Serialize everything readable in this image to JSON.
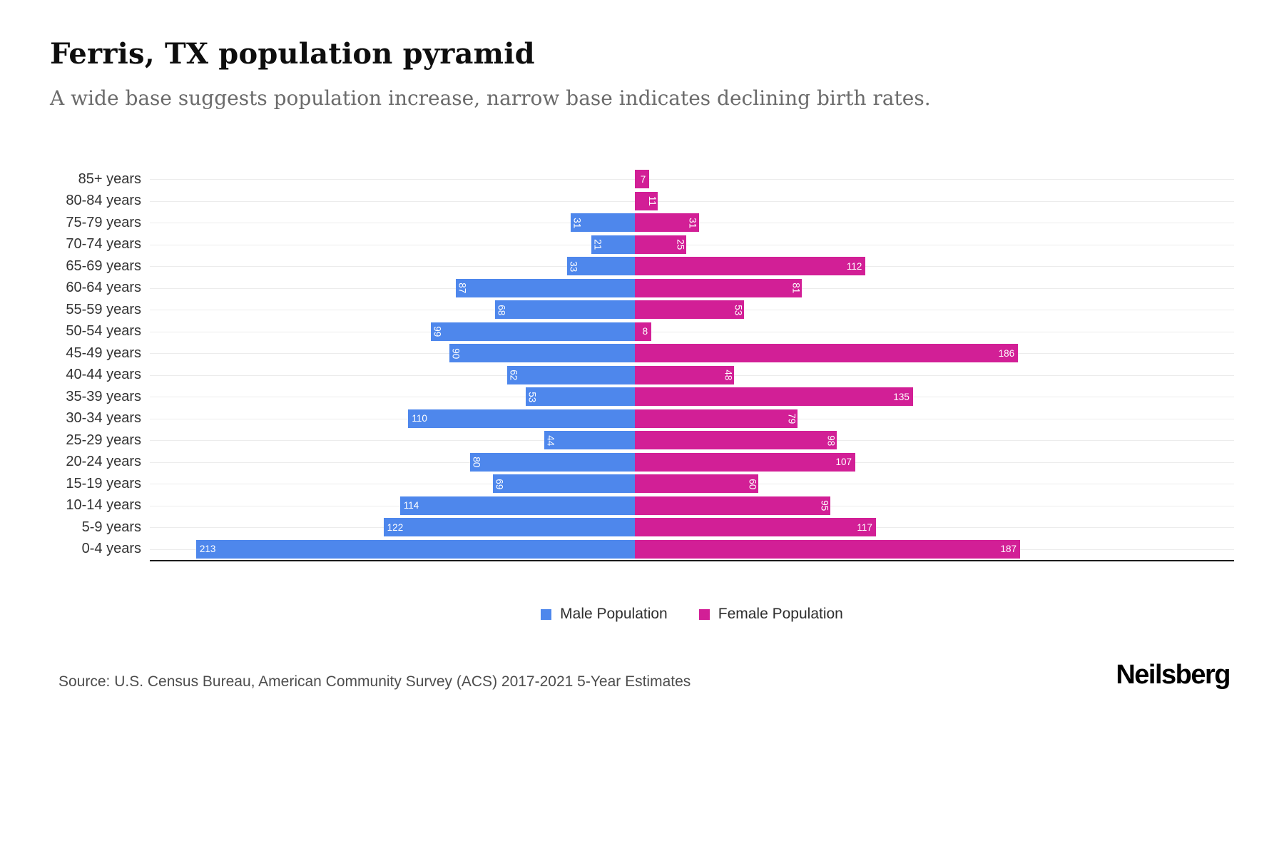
{
  "header": {
    "title": "Ferris, TX population pyramid",
    "subtitle": "A wide base suggests population increase, narrow base indicates declining birth rates."
  },
  "chart_data": {
    "type": "bar",
    "variant": "population-pyramid",
    "orientation": "horizontal",
    "categories": [
      "85+ years",
      "80-84 years",
      "75-79 years",
      "70-74 years",
      "65-69 years",
      "60-64 years",
      "55-59 years",
      "50-54 years",
      "45-49 years",
      "40-44 years",
      "35-39 years",
      "30-34 years",
      "25-29 years",
      "20-24 years",
      "15-19 years",
      "10-14 years",
      "5-9 years",
      "0-4 years"
    ],
    "series": [
      {
        "name": "Male Population",
        "color": "#4e87ec",
        "side": "left",
        "values": [
          0,
          0,
          31,
          21,
          33,
          87,
          68,
          99,
          90,
          62,
          53,
          110,
          44,
          80,
          69,
          114,
          122,
          213
        ]
      },
      {
        "name": "Female Population",
        "color": "#d21f96",
        "side": "right",
        "values": [
          7,
          11,
          31,
          25,
          112,
          81,
          53,
          8,
          186,
          48,
          135,
          79,
          98,
          107,
          60,
          95,
          117,
          187
        ]
      }
    ],
    "value_labels": "inside-bar-end",
    "xlabel": "",
    "ylabel": "",
    "xlim_per_side": [
      0,
      235
    ],
    "grid": true,
    "legend_position": "bottom"
  },
  "footer": {
    "source": "Source: U.S. Census Bureau, American Community Survey (ACS) 2017-2021 5-Year Estimates",
    "brand": "Neilsberg"
  }
}
